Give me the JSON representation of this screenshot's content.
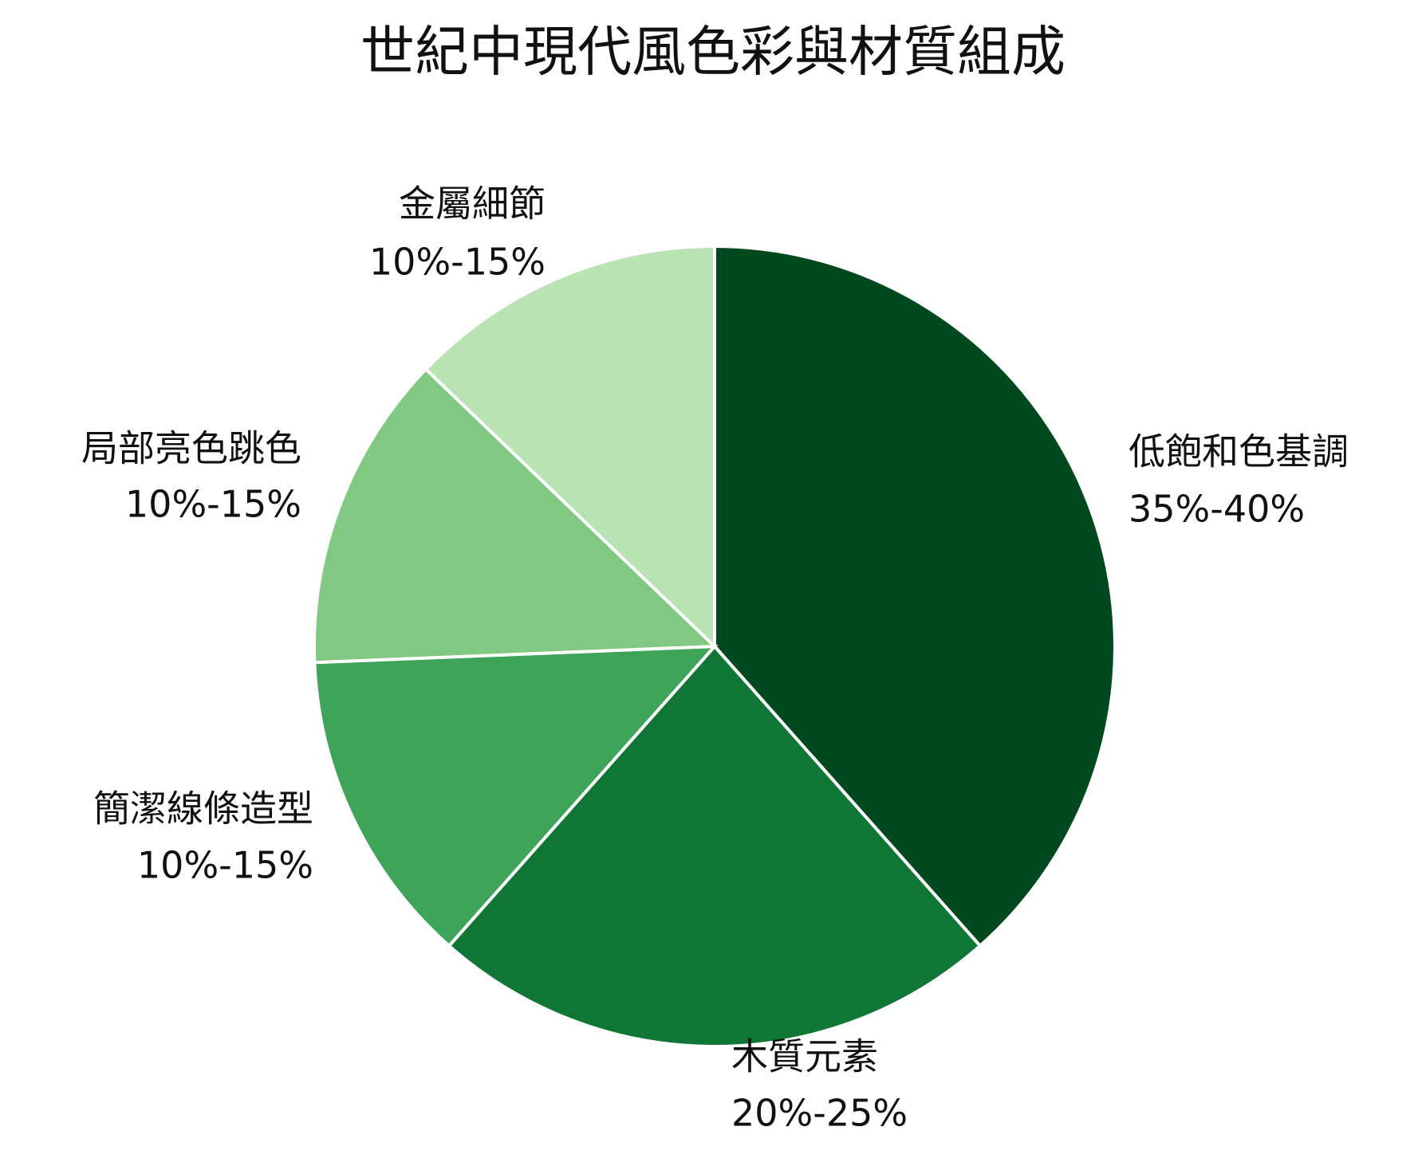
{
  "chart_data": {
    "type": "pie",
    "title": "世紀中現代風色彩與材質組成",
    "categories": [
      "低飽和色基調",
      "木質元素",
      "簡潔線條造型",
      "局部亮色跳色",
      "金屬細節"
    ],
    "values": [
      37.5,
      22.5,
      12.5,
      12.5,
      12.5
    ],
    "value_labels": [
      "35%-40%",
      "20%-25%",
      "10%-15%",
      "10%-15%",
      "10%-15%"
    ],
    "colors": [
      "#00491e",
      "#0f7636",
      "#3da45a",
      "#81c882",
      "#b9e3b3"
    ]
  }
}
